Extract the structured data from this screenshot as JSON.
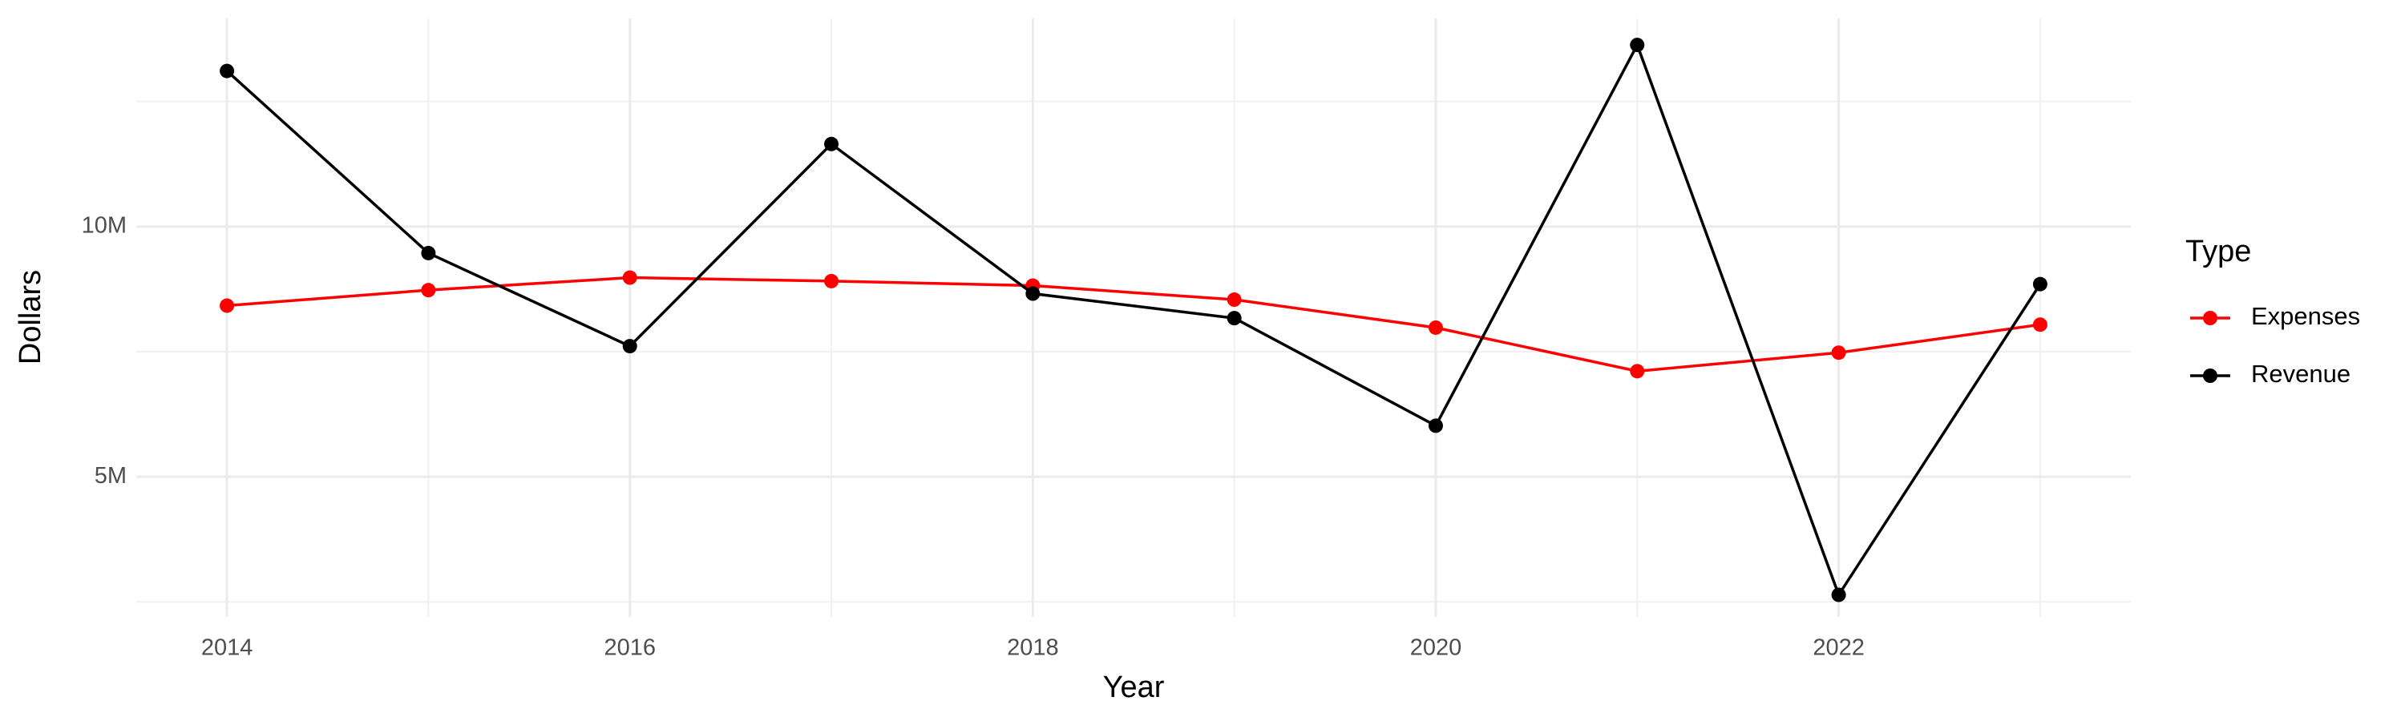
{
  "chart_data": {
    "type": "line",
    "x_label": "Year",
    "y_label": "Dollars",
    "legend_title": "Type",
    "x": [
      2014,
      2015,
      2016,
      2017,
      2018,
      2019,
      2020,
      2021,
      2022,
      2023
    ],
    "series": [
      {
        "name": "Expenses",
        "color": "#ff0000",
        "values": [
          8420000,
          8730000,
          8980000,
          8910000,
          8820000,
          8540000,
          7980000,
          7110000,
          7480000,
          8040000
        ]
      },
      {
        "name": "Revenue",
        "color": "#000000",
        "values": [
          13110000,
          9470000,
          7610000,
          11650000,
          8660000,
          8170000,
          6020000,
          13630000,
          2640000,
          8850000
        ]
      }
    ],
    "xlim": [
      2013.55,
      2023.45
    ],
    "xticks": [
      2014,
      2016,
      2018,
      2020,
      2022
    ],
    "ylim": [
      2200000,
      14160000
    ],
    "yticks": [
      {
        "value": 5000000,
        "label": "5M"
      },
      {
        "value": 10000000,
        "label": "10M"
      }
    ],
    "grid": true,
    "minor_grid": true,
    "legend": "right"
  }
}
